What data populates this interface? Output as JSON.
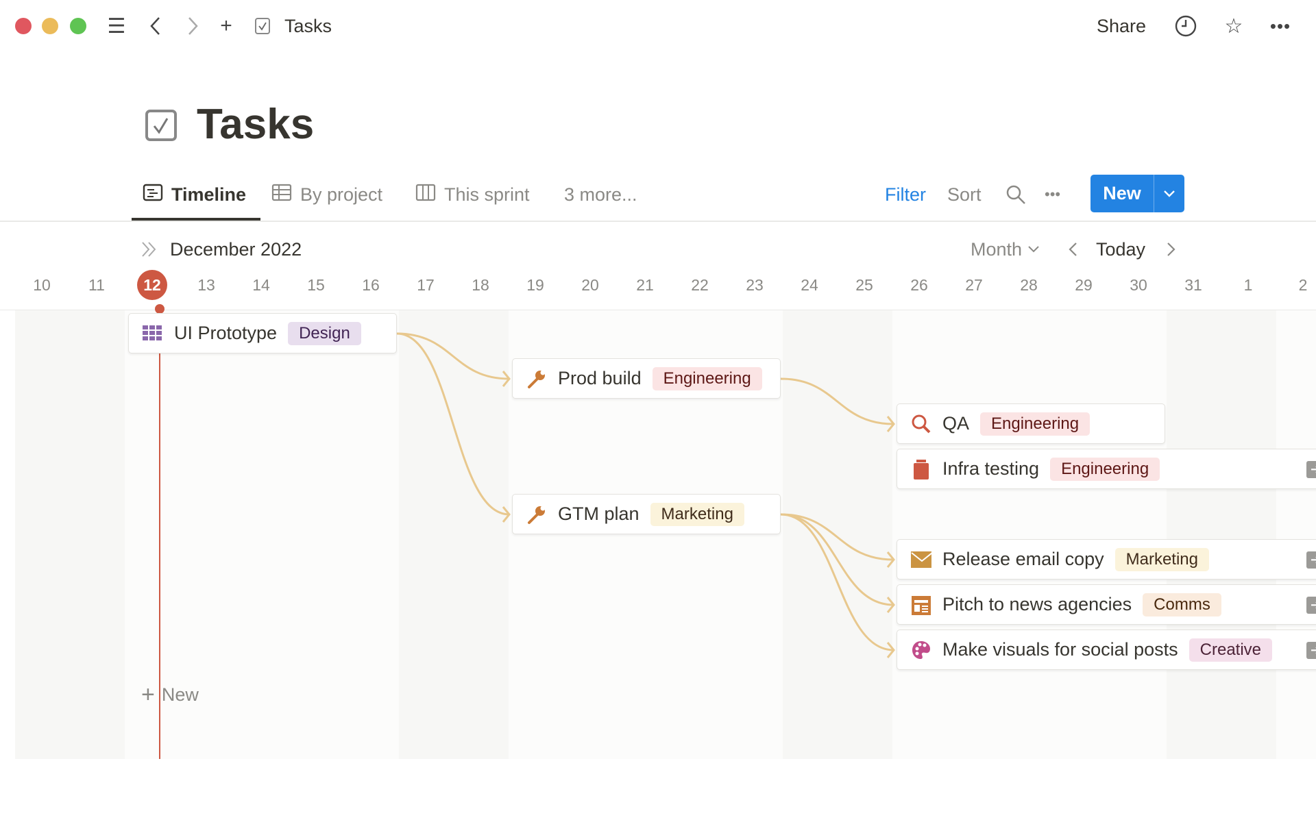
{
  "titlebar": {
    "title": "Tasks",
    "share": "Share",
    "icons": [
      "menu-icon",
      "back-icon",
      "forward-icon",
      "plus-icon",
      "checkbox-icon",
      "clock-icon",
      "star-icon",
      "more-icon"
    ]
  },
  "page": {
    "title": "Tasks",
    "icon": "checkbox-icon"
  },
  "tabs": [
    {
      "label": "Timeline",
      "icon": "timeline-icon",
      "active": true
    },
    {
      "label": "By project",
      "icon": "table-icon"
    },
    {
      "label": "This sprint",
      "icon": "board-icon"
    },
    {
      "label": "3 more..."
    }
  ],
  "toolbar": {
    "filter": "Filter",
    "sort": "Sort",
    "new": "New",
    "accent": "#2383e2"
  },
  "timeline": {
    "month": "December 2022",
    "scale": "Month",
    "today": "Today",
    "today_day": "12",
    "days": [
      "10",
      "11",
      "12",
      "13",
      "14",
      "15",
      "16",
      "17",
      "18",
      "19",
      "20",
      "21",
      "22",
      "23",
      "24",
      "25",
      "26",
      "27",
      "28",
      "29",
      "30",
      "31",
      "1",
      "2"
    ],
    "new_label": "New"
  },
  "tasks": [
    {
      "name": "UI Prototype",
      "tag": "Design",
      "icon": "grid-icon"
    },
    {
      "name": "Prod build",
      "tag": "Engineering",
      "icon": "wrench-icon"
    },
    {
      "name": "QA",
      "tag": "Engineering",
      "icon": "magnifier-icon"
    },
    {
      "name": "Infra testing",
      "tag": "Engineering",
      "icon": "jar-icon"
    },
    {
      "name": "GTM plan",
      "tag": "Marketing",
      "icon": "wrench-icon"
    },
    {
      "name": "Release email copy",
      "tag": "Marketing",
      "icon": "envelope-icon"
    },
    {
      "name": "Pitch to news agencies",
      "tag": "Comms",
      "icon": "newspaper-icon"
    },
    {
      "name": "Make visuals for social posts",
      "tag": "Creative",
      "icon": "palette-icon"
    }
  ],
  "tag_colors": {
    "Design": [
      "#e8deee",
      "#412454"
    ],
    "Engineering": [
      "#fbe4e4",
      "#5d1715"
    ],
    "Marketing": [
      "#fbf3db",
      "#402c1b"
    ],
    "Comms": [
      "#faebdd",
      "#49290e"
    ],
    "Creative": [
      "#f4dfeb",
      "#4c2337"
    ]
  }
}
